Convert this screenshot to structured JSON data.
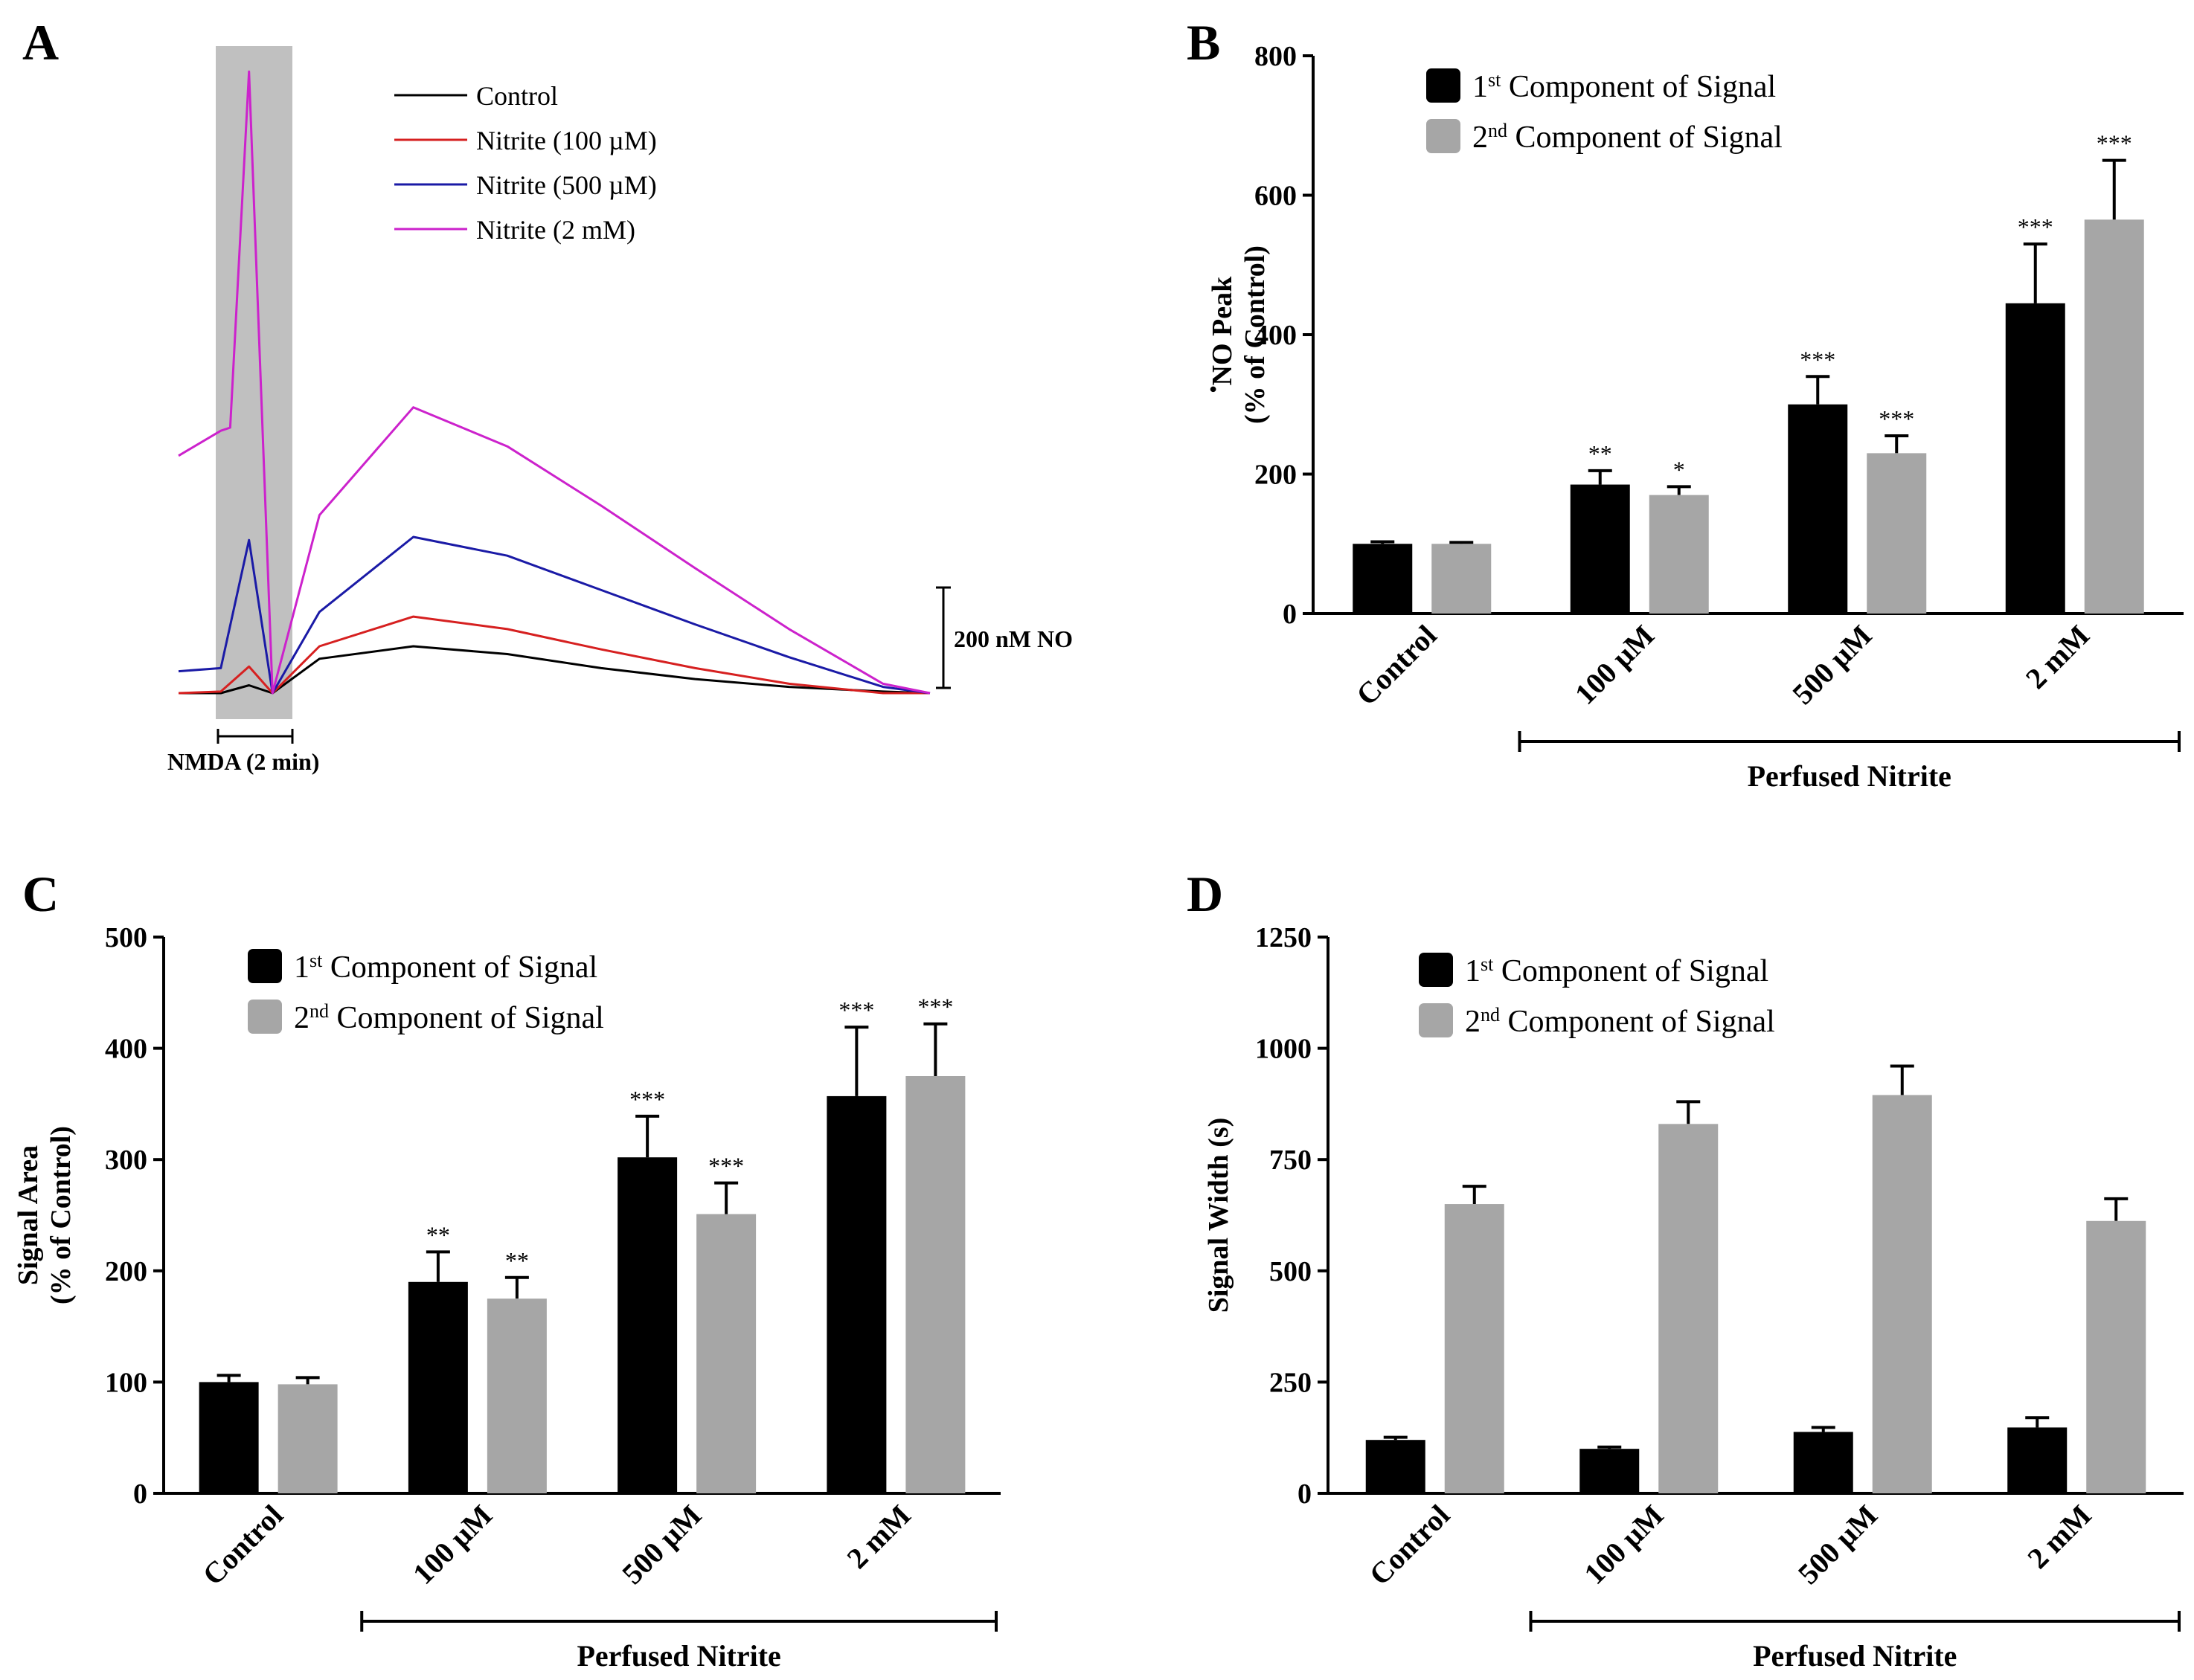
{
  "chart_data": [
    {
      "panel": "A",
      "type": "line",
      "legend": [
        "Control",
        "Nitrite (100 µM)",
        "Nitrite (500 µM)",
        "Nitrite (2 mM)"
      ],
      "colors": [
        "#000000",
        "#d62020",
        "#1a1aa6",
        "#cc22cc"
      ],
      "scale_bar_label": "200 nM NO",
      "stimulus_label": "NMDA (2 min)",
      "series": [
        {
          "name": "Control",
          "x": [
            0,
            0.9,
            1.5,
            2.0,
            3.0,
            5.0,
            7.0,
            9.0,
            11.0,
            13.0,
            15.0,
            16.0
          ],
          "y": [
            0,
            0,
            25,
            0,
            110,
            150,
            125,
            80,
            45,
            20,
            5,
            0
          ]
        },
        {
          "name": "Nitrite (100 µM)",
          "x": [
            0,
            0.9,
            1.5,
            2.0,
            3.0,
            5.0,
            7.0,
            9.0,
            11.0,
            13.0,
            15.0,
            16.0
          ],
          "y": [
            0,
            5,
            85,
            0,
            150,
            245,
            205,
            140,
            80,
            30,
            0,
            0
          ]
        },
        {
          "name": "Nitrite (500 µM)",
          "x": [
            0,
            0.9,
            1.5,
            2.0,
            3.0,
            5.0,
            7.0,
            9.0,
            11.0,
            13.0,
            15.0,
            16.0
          ],
          "y": [
            70,
            80,
            490,
            0,
            260,
            500,
            440,
            330,
            220,
            115,
            20,
            0
          ]
        },
        {
          "name": "Nitrite (2 mM)",
          "x": [
            0,
            0.9,
            1.1,
            1.5,
            2.0,
            3.0,
            5.0,
            7.0,
            9.0,
            11.0,
            13.0,
            15.0,
            16.0
          ],
          "y": [
            760,
            840,
            850,
            1990,
            0,
            570,
            915,
            790,
            600,
            400,
            205,
            30,
            0
          ]
        }
      ]
    },
    {
      "panel": "B",
      "type": "bar",
      "ylabel_sup": "•",
      "ylabel_line1": "NO Peak",
      "ylabel_line2": "(% of Control)",
      "ylim": [
        0,
        800
      ],
      "yticks": [
        "0",
        "200",
        "400",
        "600",
        "800"
      ],
      "categories": [
        "Control",
        "100 µM",
        "500 µM",
        "2 mM"
      ],
      "xgroup_label": "Perfused Nitrite",
      "legend": [
        {
          "pre": "1",
          "sup": "st",
          "post": " Component of Signal"
        },
        {
          "pre": "2",
          "sup": "nd",
          "post": " Component of Signal"
        }
      ],
      "series": [
        {
          "name": "1st Component of Signal",
          "color": "#000000",
          "values": [
            100,
            185,
            300,
            445
          ],
          "errors": [
            3,
            20,
            40,
            85
          ],
          "sig": [
            "",
            "**",
            "***",
            "***"
          ]
        },
        {
          "name": "2nd Component of Signal",
          "color": "#a6a6a6",
          "values": [
            100,
            170,
            230,
            565
          ],
          "errors": [
            2,
            12,
            25,
            85
          ],
          "sig": [
            "",
            "*",
            "***",
            "***"
          ]
        }
      ]
    },
    {
      "panel": "C",
      "type": "bar",
      "ylabel_line1": "Signal Area",
      "ylabel_line2": "(% of Control)",
      "ylim": [
        0,
        500
      ],
      "yticks": [
        "0",
        "100",
        "200",
        "300",
        "400",
        "500"
      ],
      "categories": [
        "Control",
        "100 µM",
        "500 µM",
        "2 mM"
      ],
      "xgroup_label": "Perfused Nitrite",
      "legend": [
        {
          "pre": "1",
          "sup": "st",
          "post": " Component of Signal"
        },
        {
          "pre": "2",
          "sup": "nd",
          "post": " Component of Signal"
        }
      ],
      "series": [
        {
          "name": "1st Component of Signal",
          "color": "#000000",
          "values": [
            100,
            190,
            302,
            357
          ],
          "errors": [
            6,
            27,
            37,
            62
          ],
          "sig": [
            "",
            "**",
            "***",
            "***"
          ]
        },
        {
          "name": "2nd Component of Signal",
          "color": "#a6a6a6",
          "values": [
            98,
            175,
            251,
            375
          ],
          "errors": [
            6,
            19,
            28,
            47
          ],
          "sig": [
            "",
            "**",
            "***",
            "***"
          ]
        }
      ]
    },
    {
      "panel": "D",
      "type": "bar",
      "ylabel_line1": "Signal Width (s)",
      "ylim": [
        0,
        1250
      ],
      "yticks": [
        "0",
        "250",
        "500",
        "750",
        "1000",
        "1250"
      ],
      "categories": [
        "Control",
        "100 µM",
        "500 µM",
        "2 mM"
      ],
      "xgroup_label": "Perfused Nitrite",
      "legend": [
        {
          "pre": "1",
          "sup": "st",
          "post": " Component of Signal"
        },
        {
          "pre": "2",
          "sup": "nd",
          "post": " Component of Signal"
        }
      ],
      "series": [
        {
          "name": "1st Component of Signal",
          "color": "#000000",
          "values": [
            120,
            100,
            138,
            148
          ],
          "errors": [
            6,
            4,
            10,
            22
          ],
          "sig": [
            "",
            "",
            "",
            ""
          ]
        },
        {
          "name": "2nd Component of Signal",
          "color": "#a6a6a6",
          "values": [
            650,
            830,
            895,
            612
          ],
          "errors": [
            40,
            50,
            65,
            50
          ],
          "sig": [
            "",
            "",
            "",
            ""
          ]
        }
      ]
    }
  ]
}
